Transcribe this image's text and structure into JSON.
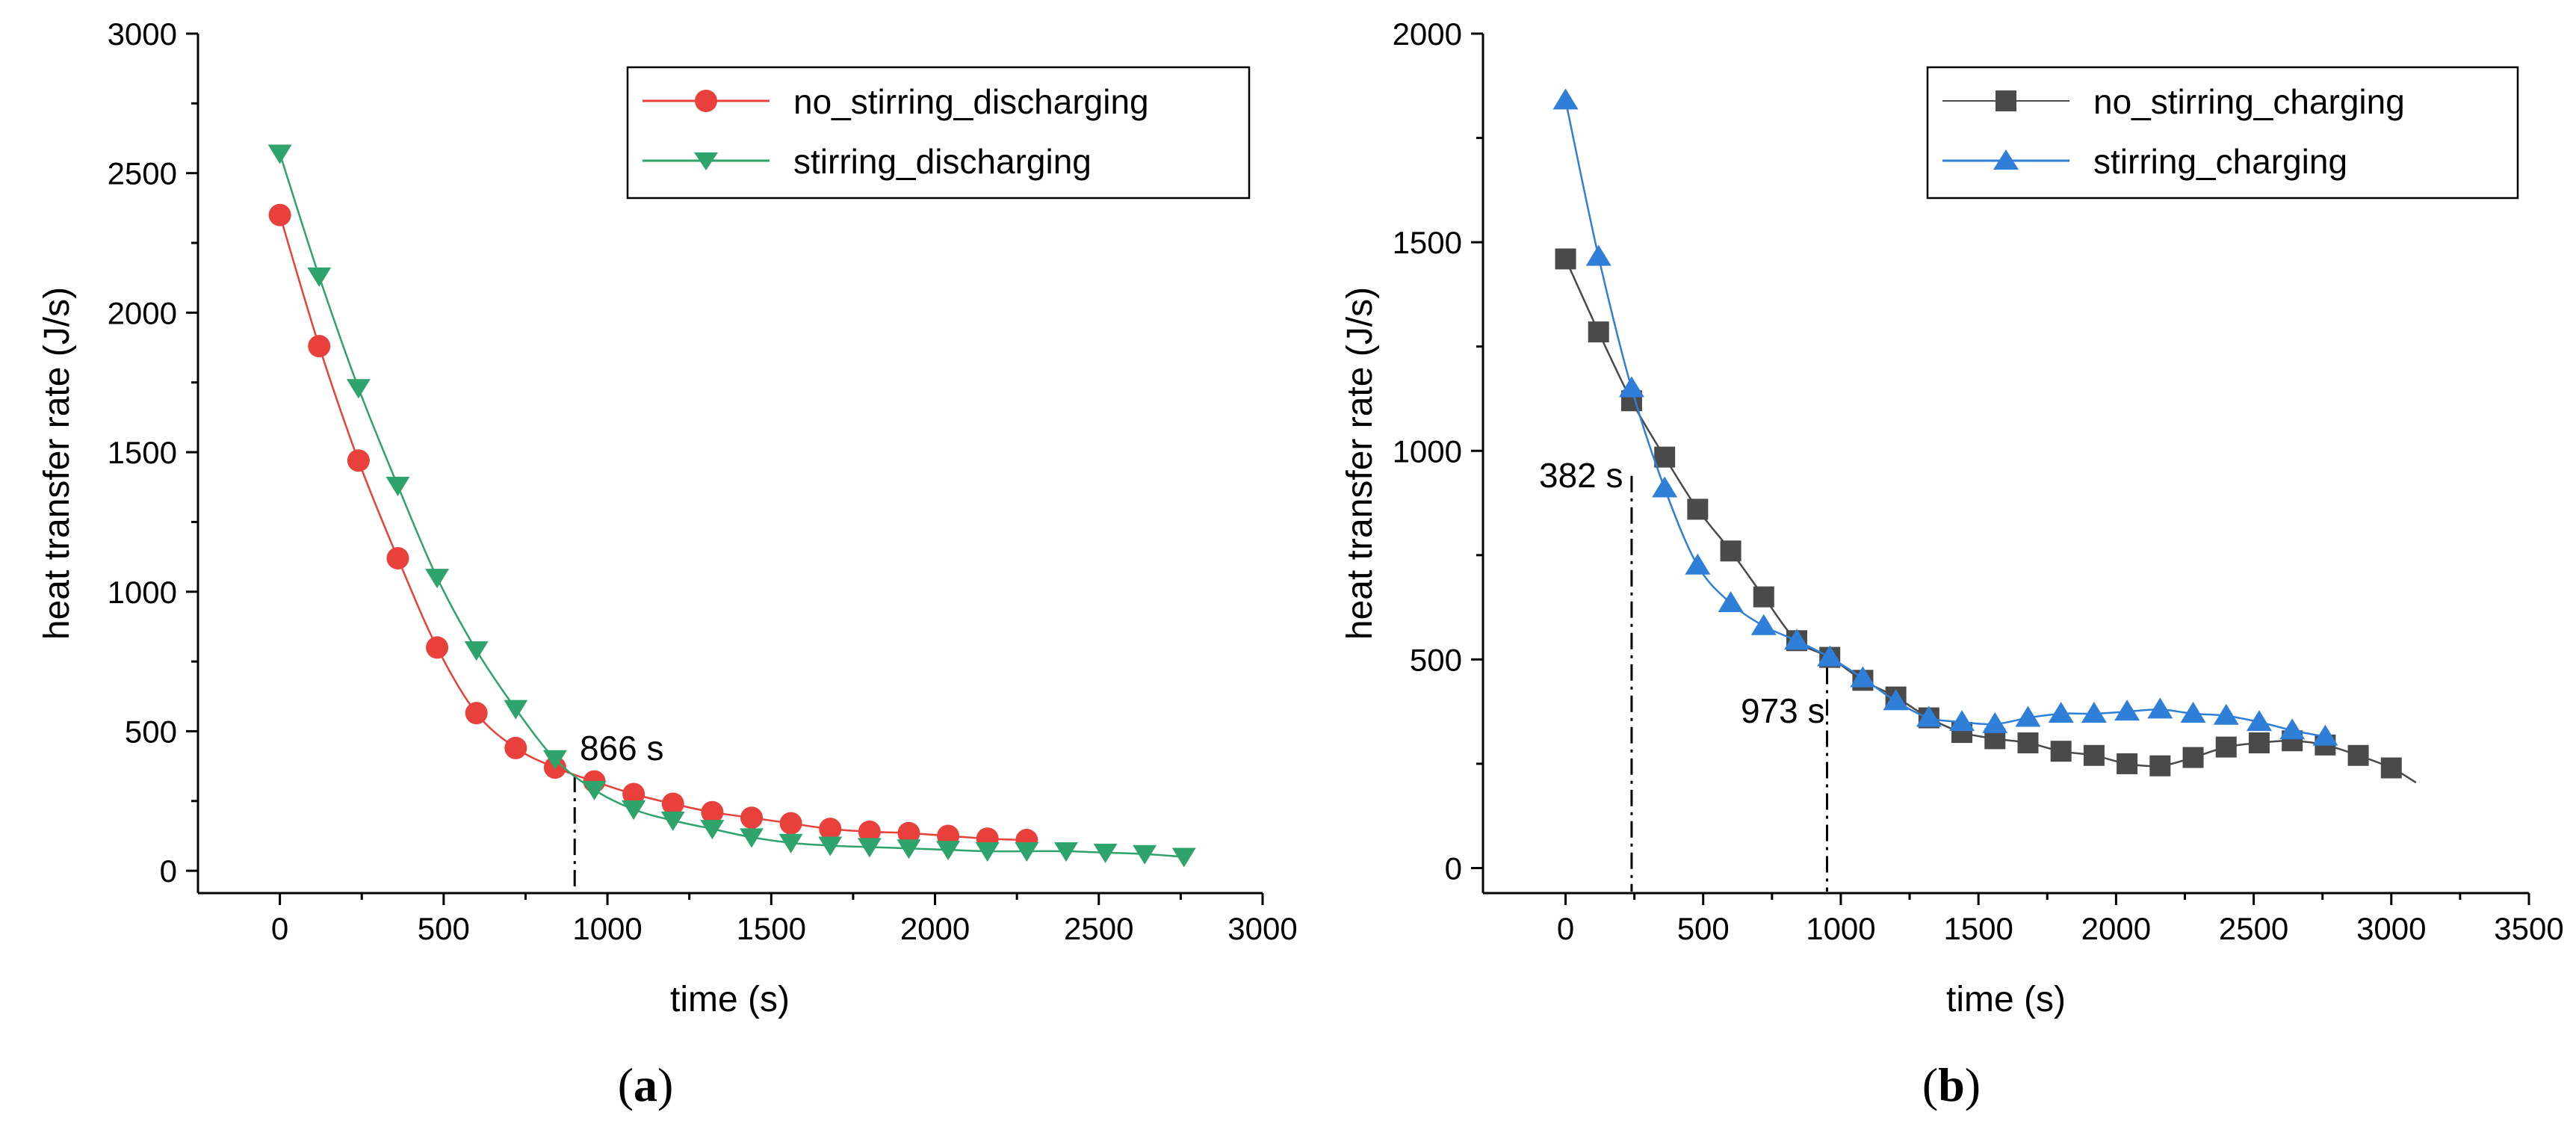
{
  "chart_data": [
    {
      "type": "line",
      "panel_label": "a",
      "xlabel": "time (s)",
      "ylabel": "heat transfer rate (J/s)",
      "xlim": [
        -250,
        3000
      ],
      "ylim": [
        -80,
        3000
      ],
      "xticks": [
        0,
        500,
        1000,
        1500,
        2000,
        2500,
        3000
      ],
      "yticks": [
        0,
        500,
        1000,
        1500,
        2000,
        2500,
        3000
      ],
      "legend_position": "top-right",
      "series": [
        {
          "name": "no_stirring_discharging",
          "color": "#e8403a",
          "marker": "circle",
          "x": [
            0,
            120,
            240,
            360,
            480,
            600,
            720,
            840,
            960,
            1080,
            1200,
            1320,
            1440,
            1560,
            1680,
            1800,
            1920,
            2040,
            2160,
            2280
          ],
          "y": [
            2350,
            1880,
            1470,
            1120,
            800,
            565,
            440,
            370,
            320,
            275,
            240,
            210,
            190,
            170,
            150,
            140,
            135,
            125,
            115,
            110
          ]
        },
        {
          "name": "stirring_discharging",
          "color": "#2ea36b",
          "marker": "triangle-down",
          "x": [
            0,
            120,
            240,
            360,
            480,
            600,
            720,
            840,
            960,
            1080,
            1200,
            1320,
            1440,
            1560,
            1680,
            1800,
            1920,
            2040,
            2160,
            2280,
            2400,
            2520,
            2640,
            2760
          ],
          "y": [
            2570,
            2130,
            1730,
            1380,
            1050,
            790,
            580,
            400,
            290,
            220,
            180,
            150,
            120,
            100,
            90,
            85,
            80,
            75,
            70,
            70,
            70,
            65,
            60,
            50
          ]
        }
      ],
      "annotations": [
        {
          "text": "866 s",
          "x": 900,
          "y": 340
        }
      ]
    },
    {
      "type": "line",
      "panel_label": "b",
      "xlabel": "time (s)",
      "ylabel": "heat transfer rate (J/s)",
      "xlim": [
        -300,
        3500
      ],
      "ylim": [
        -60,
        2000
      ],
      "xticks": [
        0,
        500,
        1000,
        1500,
        2000,
        2500,
        3000,
        3500
      ],
      "yticks": [
        0,
        500,
        1000,
        1500,
        2000
      ],
      "legend_position": "top-right",
      "series": [
        {
          "name": "no_stirring_charging",
          "color": "#4a4a4a",
          "marker": "square",
          "x": [
            0,
            120,
            240,
            360,
            480,
            600,
            720,
            840,
            960,
            1080,
            1200,
            1320,
            1440,
            1560,
            1680,
            1800,
            1920,
            2040,
            2160,
            2280,
            2400,
            2520,
            2640,
            2760,
            2880,
            3000
          ],
          "y": [
            1460,
            1285,
            1120,
            985,
            860,
            760,
            650,
            545,
            505,
            450,
            410,
            360,
            325,
            310,
            300,
            280,
            270,
            250,
            245,
            265,
            290,
            300,
            305,
            295,
            270,
            240
          ]
        },
        {
          "name": "stirring_charging",
          "color": "#2f7fd8",
          "marker": "triangle-up",
          "x": [
            0,
            120,
            240,
            360,
            480,
            600,
            720,
            840,
            960,
            1080,
            1200,
            1320,
            1440,
            1560,
            1680,
            1800,
            1920,
            2040,
            2160,
            2280,
            2400,
            2520,
            2640,
            2760
          ],
          "y": [
            1840,
            1465,
            1150,
            910,
            725,
            635,
            580,
            545,
            505,
            455,
            400,
            360,
            350,
            345,
            360,
            370,
            370,
            375,
            380,
            370,
            365,
            350,
            330,
            315
          ]
        }
      ],
      "annotations": [
        {
          "text": "382 s",
          "x": 240,
          "y": 940
        },
        {
          "text": "973 s",
          "x": 950,
          "y": 480
        }
      ]
    }
  ]
}
